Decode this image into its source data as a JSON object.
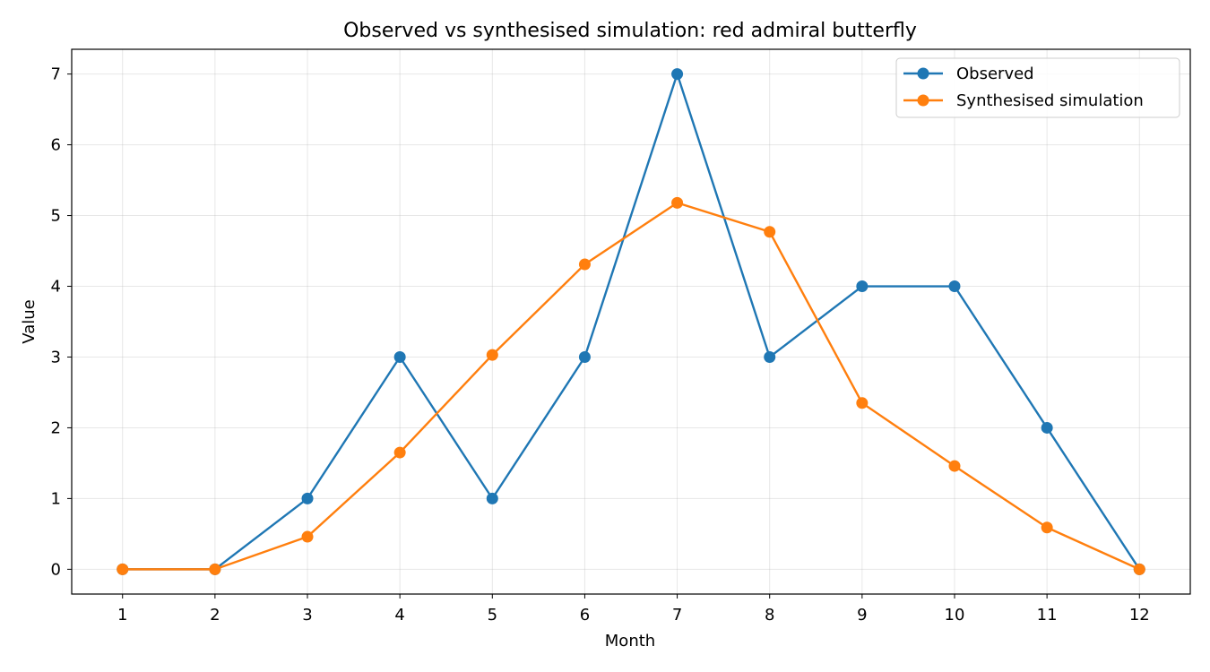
{
  "chart_data": {
    "type": "line",
    "title": "Observed vs synthesised simulation: red admiral butterfly",
    "xlabel": "Month",
    "ylabel": "Value",
    "x": [
      1,
      2,
      3,
      4,
      5,
      6,
      7,
      8,
      9,
      10,
      11,
      12
    ],
    "xlim": [
      0.45,
      12.55
    ],
    "ylim": [
      -0.35,
      7.35
    ],
    "yticks": [
      0,
      1,
      2,
      3,
      4,
      5,
      6,
      7
    ],
    "grid": true,
    "legend_position": "top-right",
    "series": [
      {
        "name": "Observed",
        "color": "#1f77b4",
        "marker": "circle",
        "values": [
          0,
          0,
          1,
          3,
          1,
          3,
          7,
          3,
          4,
          4,
          2,
          0
        ]
      },
      {
        "name": "Synthesised simulation",
        "color": "#ff7f0e",
        "marker": "circle",
        "values": [
          0,
          0,
          0.46,
          1.65,
          3.03,
          4.31,
          5.18,
          4.77,
          2.35,
          1.46,
          0.59,
          0
        ]
      }
    ]
  }
}
